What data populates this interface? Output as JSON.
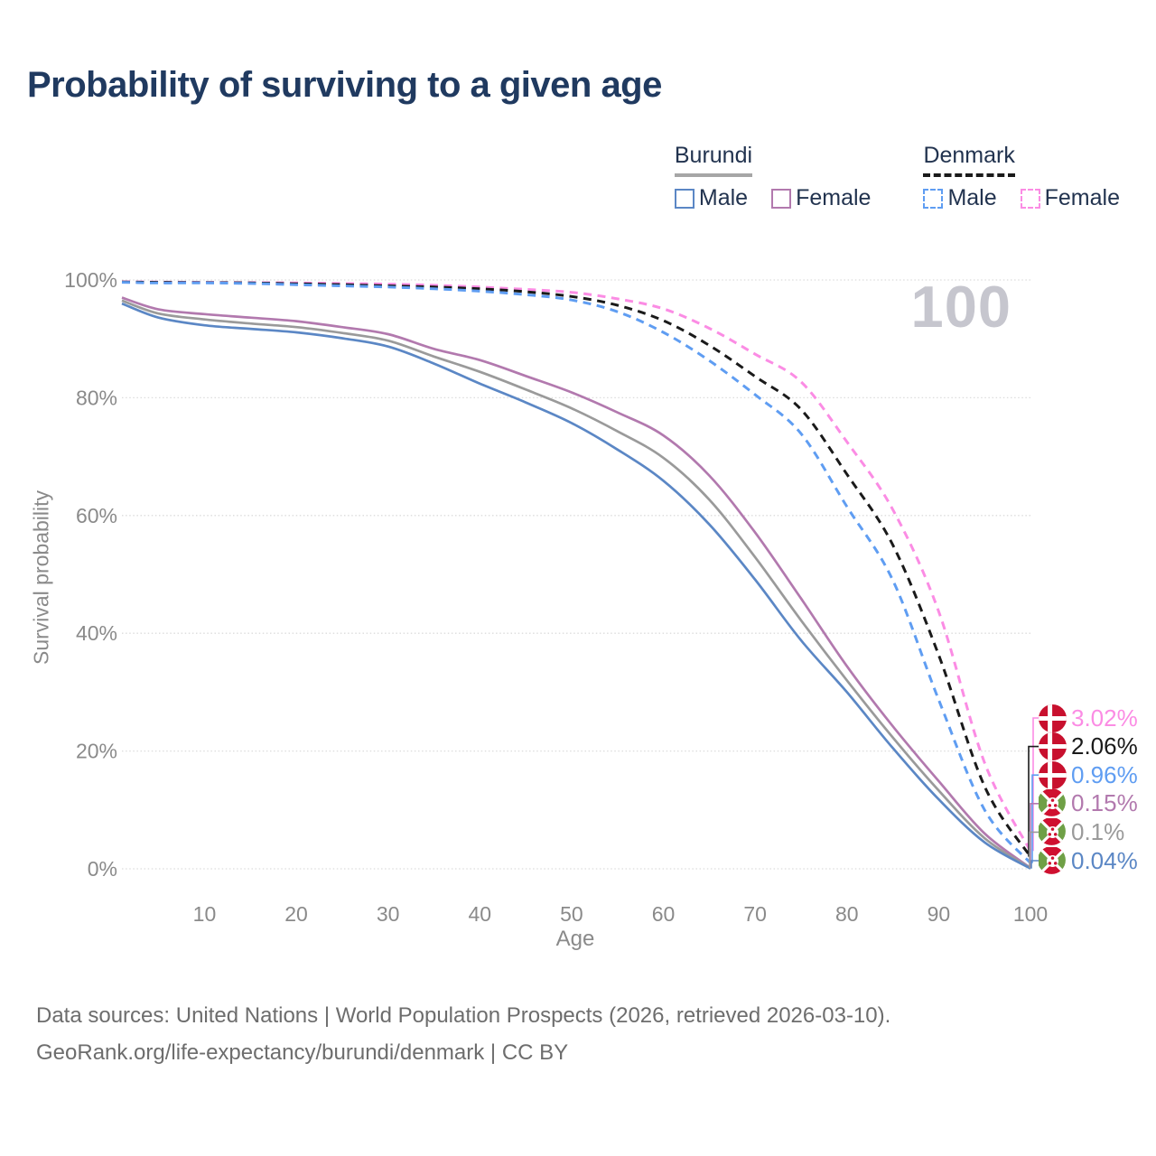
{
  "title": "Probability of surviving to a given age",
  "hover_age_label": "100",
  "legend": {
    "groups": [
      {
        "name": "Burundi",
        "line_style": "solid",
        "underline_color": "#a6a6a6",
        "items": [
          {
            "label": "Male",
            "color": "#5b87c5"
          },
          {
            "label": "Female",
            "color": "#b279ae"
          }
        ]
      },
      {
        "name": "Denmark",
        "line_style": "dashed",
        "underline_color": "#1a1a1a",
        "items": [
          {
            "label": "Male",
            "color": "#5f9df2"
          },
          {
            "label": "Female",
            "color": "#fb8ce4"
          }
        ]
      }
    ]
  },
  "chart_data": {
    "type": "line",
    "xlabel": "Age",
    "ylabel": "Survival probability",
    "xlim": [
      1,
      100
    ],
    "ylim": [
      0,
      100
    ],
    "grid": "horizontal-dotted",
    "x_ticks": [
      10,
      20,
      30,
      40,
      50,
      60,
      70,
      80,
      90,
      100
    ],
    "y_ticks": [
      "0%",
      "20%",
      "40%",
      "60%",
      "80%",
      "100%"
    ],
    "ages": [
      1,
      5,
      10,
      15,
      20,
      25,
      30,
      35,
      40,
      45,
      50,
      55,
      60,
      65,
      70,
      75,
      80,
      85,
      90,
      95,
      100
    ],
    "series": [
      {
        "name": "Denmark Female",
        "country": "Denmark",
        "sex": "female",
        "color": "#fb8ce4",
        "dash": "dashed",
        "values": [
          99.7,
          99.65,
          99.6,
          99.55,
          99.5,
          99.4,
          99.3,
          99.1,
          98.8,
          98.4,
          97.9,
          96.8,
          95.1,
          91.8,
          87.4,
          82.7,
          72.5,
          61.0,
          43.7,
          18.0,
          3.02
        ],
        "end_label": "3.02%",
        "flag": "denmark"
      },
      {
        "name": "Denmark (unlabeled combined line)",
        "country": "Denmark",
        "sex": "combined",
        "color": "#1a1a1a",
        "dash": "dashed",
        "values": [
          99.65,
          99.6,
          99.55,
          99.5,
          99.35,
          99.2,
          99.0,
          98.8,
          98.5,
          98.0,
          97.2,
          95.7,
          93.1,
          88.9,
          83.6,
          78.0,
          67.0,
          55.0,
          36.3,
          14.0,
          2.06
        ],
        "end_label": "2.06%",
        "flag": "denmark"
      },
      {
        "name": "Denmark Male",
        "country": "Denmark",
        "sex": "male",
        "color": "#5f9df2",
        "dash": "dashed",
        "values": [
          99.6,
          99.5,
          99.5,
          99.4,
          99.2,
          99.0,
          98.8,
          98.5,
          98.1,
          97.5,
          96.6,
          94.6,
          91.1,
          86.3,
          80.5,
          73.9,
          61.5,
          49.0,
          28.7,
          10.0,
          0.96
        ],
        "end_label": "0.96%",
        "flag": "denmark"
      },
      {
        "name": "Burundi Female",
        "country": "Burundi",
        "sex": "female",
        "color": "#b279ae",
        "dash": "solid",
        "values": [
          97.0,
          95.0,
          94.2,
          93.6,
          93.0,
          92.0,
          90.8,
          88.3,
          86.4,
          83.7,
          80.9,
          77.5,
          73.6,
          66.8,
          57.1,
          45.9,
          34.4,
          24.2,
          14.9,
          6.0,
          0.15
        ],
        "end_label": "0.15%",
        "flag": "burundi"
      },
      {
        "name": "Burundi (unlabeled combined line)",
        "country": "Burundi",
        "sex": "combined",
        "color": "#9a9a9a",
        "dash": "solid",
        "values": [
          96.5,
          94.3,
          93.3,
          92.6,
          92.0,
          91.0,
          89.7,
          87.0,
          84.4,
          81.4,
          78.2,
          74.3,
          69.8,
          62.7,
          52.9,
          42.2,
          32.0,
          22.3,
          13.3,
          5.2,
          0.1
        ],
        "end_label": "0.1%",
        "flag": "burundi"
      },
      {
        "name": "Burundi Male",
        "country": "Burundi",
        "sex": "male",
        "color": "#5b87c5",
        "dash": "solid",
        "values": [
          96.0,
          93.6,
          92.3,
          91.7,
          91.1,
          90.1,
          88.7,
          85.8,
          82.4,
          79.2,
          75.7,
          71.2,
          65.9,
          58.5,
          49.1,
          38.8,
          30.0,
          20.5,
          11.8,
          4.5,
          0.04
        ],
        "end_label": "0.04%",
        "flag": "burundi"
      }
    ]
  },
  "annotations": [
    {
      "value": "3.02%",
      "color": "#fb8ce4",
      "flag": "denmark"
    },
    {
      "value": "2.06%",
      "color": "#1a1a1a",
      "flag": "denmark"
    },
    {
      "value": "0.96%",
      "color": "#5f9df2",
      "flag": "denmark"
    },
    {
      "value": "0.15%",
      "color": "#b279ae",
      "flag": "burundi"
    },
    {
      "value": "0.1%",
      "color": "#9a9a9a",
      "flag": "burundi"
    },
    {
      "value": "0.04%",
      "color": "#5b87c5",
      "flag": "burundi"
    }
  ],
  "flag_colors": {
    "denmark_red": "#c8102e",
    "burundi_red": "#cf1030",
    "burundi_green": "#6fa046"
  },
  "footer": {
    "line1": "Data sources: United Nations | World Population Prospects (2026, retrieved 2026-03-10).",
    "line2": "GeoRank.org/life-expectancy/burundi/denmark | CC BY"
  }
}
